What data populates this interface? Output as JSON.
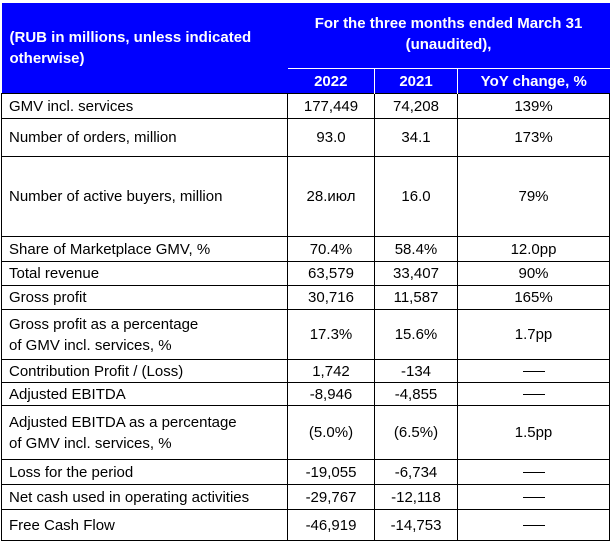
{
  "header": {
    "units_label_line1": "(RUB in millions, unless indicated",
    "units_label_line2": "otherwise)",
    "period_line1": "For the three months ended March 31",
    "period_line2": "(unaudited),",
    "col_2022": "2022",
    "col_2021": "2021",
    "col_yoy": "YoY change, %"
  },
  "rows": [
    {
      "label": "GMV incl. services",
      "v2022": "177,449",
      "v2021": "74,208",
      "yoy": "139%"
    },
    {
      "label": "Number of orders, million",
      "v2022": "93.0",
      "v2021": "34.1",
      "yoy": "173%"
    },
    {
      "label": "Number of active buyers, million",
      "v2022": "28.июл",
      "v2021": "16.0",
      "yoy": "79%"
    },
    {
      "label": "Share of Marketplace GMV, %",
      "v2022": "70.4%",
      "v2021": "58.4%",
      "yoy": "12.0pp"
    },
    {
      "label": "Total revenue",
      "v2022": "63,579",
      "v2021": "33,407",
      "yoy": "90%"
    },
    {
      "label": "Gross profit",
      "v2022": "30,716",
      "v2021": "11,587",
      "yoy": "165%"
    },
    {
      "label_line1": "Gross profit as a percentage",
      "label_line2": "of GMV incl. services, %",
      "v2022": "17.3%",
      "v2021": "15.6%",
      "yoy": "1.7pp"
    },
    {
      "label": "Contribution Profit / (Loss)",
      "v2022": "1,742",
      "v2021": "-134",
      "yoy": "—"
    },
    {
      "label": "Adjusted EBITDA",
      "v2022": "-8,946",
      "v2021": "-4,855",
      "yoy": "—"
    },
    {
      "label_line1": "Adjusted EBITDA as a percentage",
      "label_line2": "of GMV incl. services, %",
      "v2022": "(5.0%)",
      "v2021": "(6.5%)",
      "yoy": "1.5pp"
    },
    {
      "label": "Loss for the period",
      "v2022": "-19,055",
      "v2021": "-6,734",
      "yoy": "—"
    },
    {
      "label": "Net cash used in operating activities",
      "v2022": "-29,767",
      "v2021": "-12,118",
      "yoy": "—"
    },
    {
      "label": "Free Cash Flow",
      "v2022": "-46,919",
      "v2021": "-14,753",
      "yoy": "—"
    }
  ]
}
